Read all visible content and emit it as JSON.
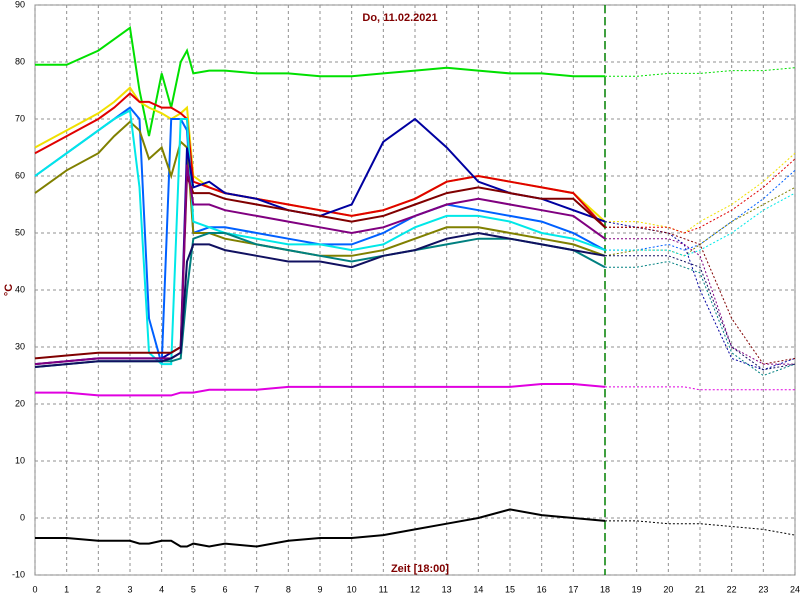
{
  "chart_data": {
    "type": "line",
    "title": "Do, 11.02.2021",
    "y_label": "°C",
    "x_label": "Zeit [18:00]",
    "x": [
      0,
      1,
      2,
      2.5,
      3,
      3.3,
      3.6,
      4,
      4.3,
      4.6,
      4.8,
      5,
      5.5,
      6,
      7,
      8,
      9,
      10,
      11,
      12,
      13,
      14,
      15,
      16,
      17,
      18,
      19,
      20,
      20.5,
      21,
      22,
      23,
      24
    ],
    "xlim": [
      0,
      24
    ],
    "xticks": [
      0,
      1,
      2,
      3,
      4,
      5,
      6,
      7,
      8,
      9,
      10,
      11,
      12,
      13,
      14,
      15,
      16,
      17,
      18,
      19,
      20,
      21,
      22,
      23,
      24
    ],
    "ylim": [
      -10,
      90
    ],
    "yticks": [
      -10,
      0,
      10,
      20,
      30,
      40,
      50,
      60,
      70,
      80,
      90
    ],
    "grid": true,
    "forecast_from": 18,
    "series": [
      {
        "color": "#00e000",
        "values": [
          79.5,
          79.5,
          82,
          84,
          86,
          75,
          67,
          78,
          72,
          80,
          82,
          78,
          78.5,
          78.5,
          78,
          78,
          77.5,
          77.5,
          78,
          78.5,
          79,
          78.5,
          78,
          78,
          77.5,
          77.5,
          77.5,
          78,
          78,
          78,
          78.5,
          78.5,
          79
        ]
      },
      {
        "color": "#f0e000",
        "values": [
          65,
          68,
          71,
          73,
          75.5,
          73,
          72,
          71,
          70,
          71,
          72,
          60,
          58,
          57,
          56,
          55,
          54,
          53,
          54,
          56,
          59,
          60,
          59,
          58,
          57,
          52,
          52,
          51,
          50,
          52,
          55,
          59,
          64
        ]
      },
      {
        "color": "#e00000",
        "values": [
          64,
          67,
          70,
          72,
          74.5,
          73,
          73,
          72,
          72,
          71,
          70,
          59,
          58,
          57,
          56,
          55,
          54,
          53,
          54,
          56,
          59,
          60,
          59,
          58,
          57,
          51,
          51,
          51,
          50,
          51,
          54,
          58,
          63
        ]
      },
      {
        "color": "#0060ff",
        "values": [
          60,
          64,
          68,
          70,
          72,
          70,
          35,
          27,
          70,
          70,
          68,
          50,
          51,
          51,
          50,
          49,
          48,
          48,
          50,
          53,
          55,
          54,
          53,
          52,
          50,
          47,
          47,
          48,
          47,
          48,
          52,
          56,
          61
        ]
      },
      {
        "color": "#808000",
        "values": [
          57,
          61,
          64,
          67,
          69.5,
          68,
          63,
          65,
          60,
          66,
          65,
          50,
          50,
          49,
          48,
          47,
          46,
          46,
          47,
          49,
          51,
          51,
          50,
          49,
          48,
          46,
          47,
          47,
          46,
          48,
          52,
          55,
          58
        ]
      },
      {
        "color": "#00e8e8",
        "values": [
          60,
          64,
          68,
          70,
          71.5,
          58,
          29,
          27,
          27,
          70,
          70,
          52,
          51,
          50,
          49,
          48,
          48,
          47,
          48,
          51,
          53,
          53,
          52,
          50,
          49,
          47,
          47,
          47,
          46,
          47,
          50,
          54,
          57
        ]
      },
      {
        "color": "#0000a0",
        "values": [
          27,
          27.5,
          28,
          28,
          28,
          28,
          28,
          28,
          29,
          30,
          65,
          58,
          59,
          57,
          56,
          54,
          53,
          55,
          66,
          70,
          65,
          59,
          57,
          56,
          54,
          52,
          51,
          50,
          48,
          40,
          28,
          26,
          28
        ]
      },
      {
        "color": "#800000",
        "values": [
          28,
          28.5,
          29,
          29,
          29,
          29,
          29,
          29,
          29,
          30,
          60,
          57,
          57,
          56,
          55,
          54,
          53,
          52,
          53,
          55,
          57,
          58,
          57,
          56,
          56,
          51,
          51,
          50,
          49,
          48,
          35,
          27,
          28
        ]
      },
      {
        "color": "#800080",
        "values": [
          27,
          27.5,
          28,
          28,
          28,
          28,
          28,
          28,
          28,
          29,
          62,
          55,
          55,
          54,
          53,
          52,
          51,
          50,
          51,
          53,
          55,
          56,
          55,
          54,
          53,
          49,
          49,
          49,
          48,
          46,
          30,
          27,
          27
        ]
      },
      {
        "color": "#008080",
        "values": [
          26.5,
          27,
          27.5,
          27.5,
          27.5,
          27.5,
          27.5,
          27.5,
          27.5,
          28,
          40,
          49,
          50,
          50,
          48,
          47,
          46,
          45,
          46,
          47,
          48,
          49,
          49,
          48,
          47,
          44,
          44,
          45,
          44,
          43,
          29,
          25,
          27
        ]
      },
      {
        "color": "#101060",
        "values": [
          26.5,
          27,
          27.5,
          27.5,
          27.5,
          27.5,
          27.5,
          27.5,
          28,
          29,
          45,
          48,
          48,
          47,
          46,
          45,
          45,
          44,
          46,
          47,
          49,
          50,
          49,
          48,
          47,
          46,
          46,
          46,
          45,
          44,
          30,
          26,
          27
        ]
      },
      {
        "color": "#e000e0",
        "values": [
          22,
          22,
          21.5,
          21.5,
          21.5,
          21.5,
          21.5,
          21.5,
          21.5,
          22,
          22,
          22,
          22.5,
          22.5,
          22.5,
          23,
          23,
          23,
          23,
          23,
          23,
          23,
          23,
          23.5,
          23.5,
          23,
          23,
          23,
          23,
          22.5,
          22.5,
          22.5,
          22.5
        ]
      },
      {
        "color": "#000000",
        "values": [
          -3.5,
          -3.5,
          -4,
          -4,
          -4,
          -4.5,
          -4.5,
          -4,
          -4,
          -5,
          -5,
          -4.5,
          -5,
          -4.5,
          -5,
          -4,
          -3.5,
          -3.5,
          -3,
          -2,
          -1,
          0,
          1.5,
          0.5,
          0,
          -0.5,
          -0.5,
          -1,
          -1,
          -1,
          -1.5,
          -2,
          -3
        ]
      }
    ]
  }
}
